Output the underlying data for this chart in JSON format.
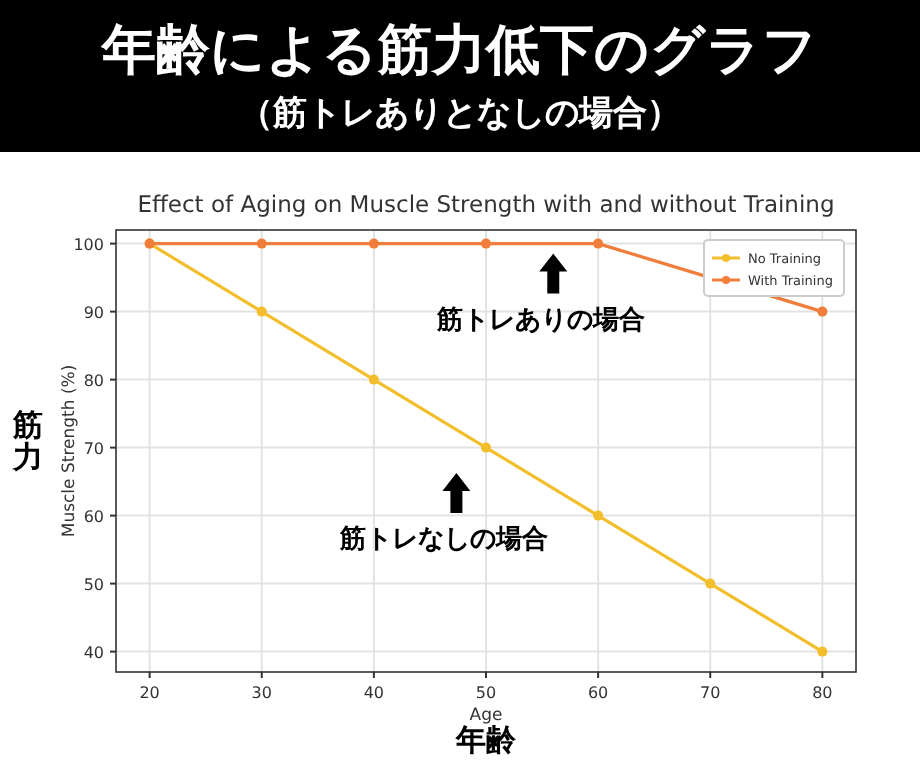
{
  "chart_data": {
    "type": "line",
    "title": "年齢による筋力低下のグラフ",
    "subtitle": "（筋トレありとなしの場合）",
    "annotations": [
      "Effect of Aging on Muscle Strength with and without Training",
      "筋力",
      "年齢",
      {
        "text": "筋トレありの場合",
        "x": 56,
        "y": 100
      },
      "筋トレなしの場合"
    ],
    "xlabel": "Age",
    "ylabel": "Muscle Strength (%)",
    "x": [
      20,
      30,
      40,
      50,
      60,
      70,
      80
    ],
    "series": [
      {
        "name": "No Training",
        "color": "#f2be2c",
        "values": [
          100,
          90,
          80,
          70,
          60,
          50,
          40
        ]
      },
      {
        "name": "With Training",
        "color": "#f07d3a",
        "values": [
          100,
          100,
          100,
          100,
          100,
          95,
          90
        ]
      }
    ],
    "xlim": [
      17,
      83
    ],
    "ylim": [
      37,
      102
    ],
    "xticks": [
      20,
      30,
      40,
      50,
      60,
      70,
      80
    ],
    "yticks": [
      40,
      50,
      60,
      70,
      80,
      90,
      100
    ],
    "grid": true,
    "legend": "top right",
    "marker": "circle",
    "line_style": "solid"
  }
}
